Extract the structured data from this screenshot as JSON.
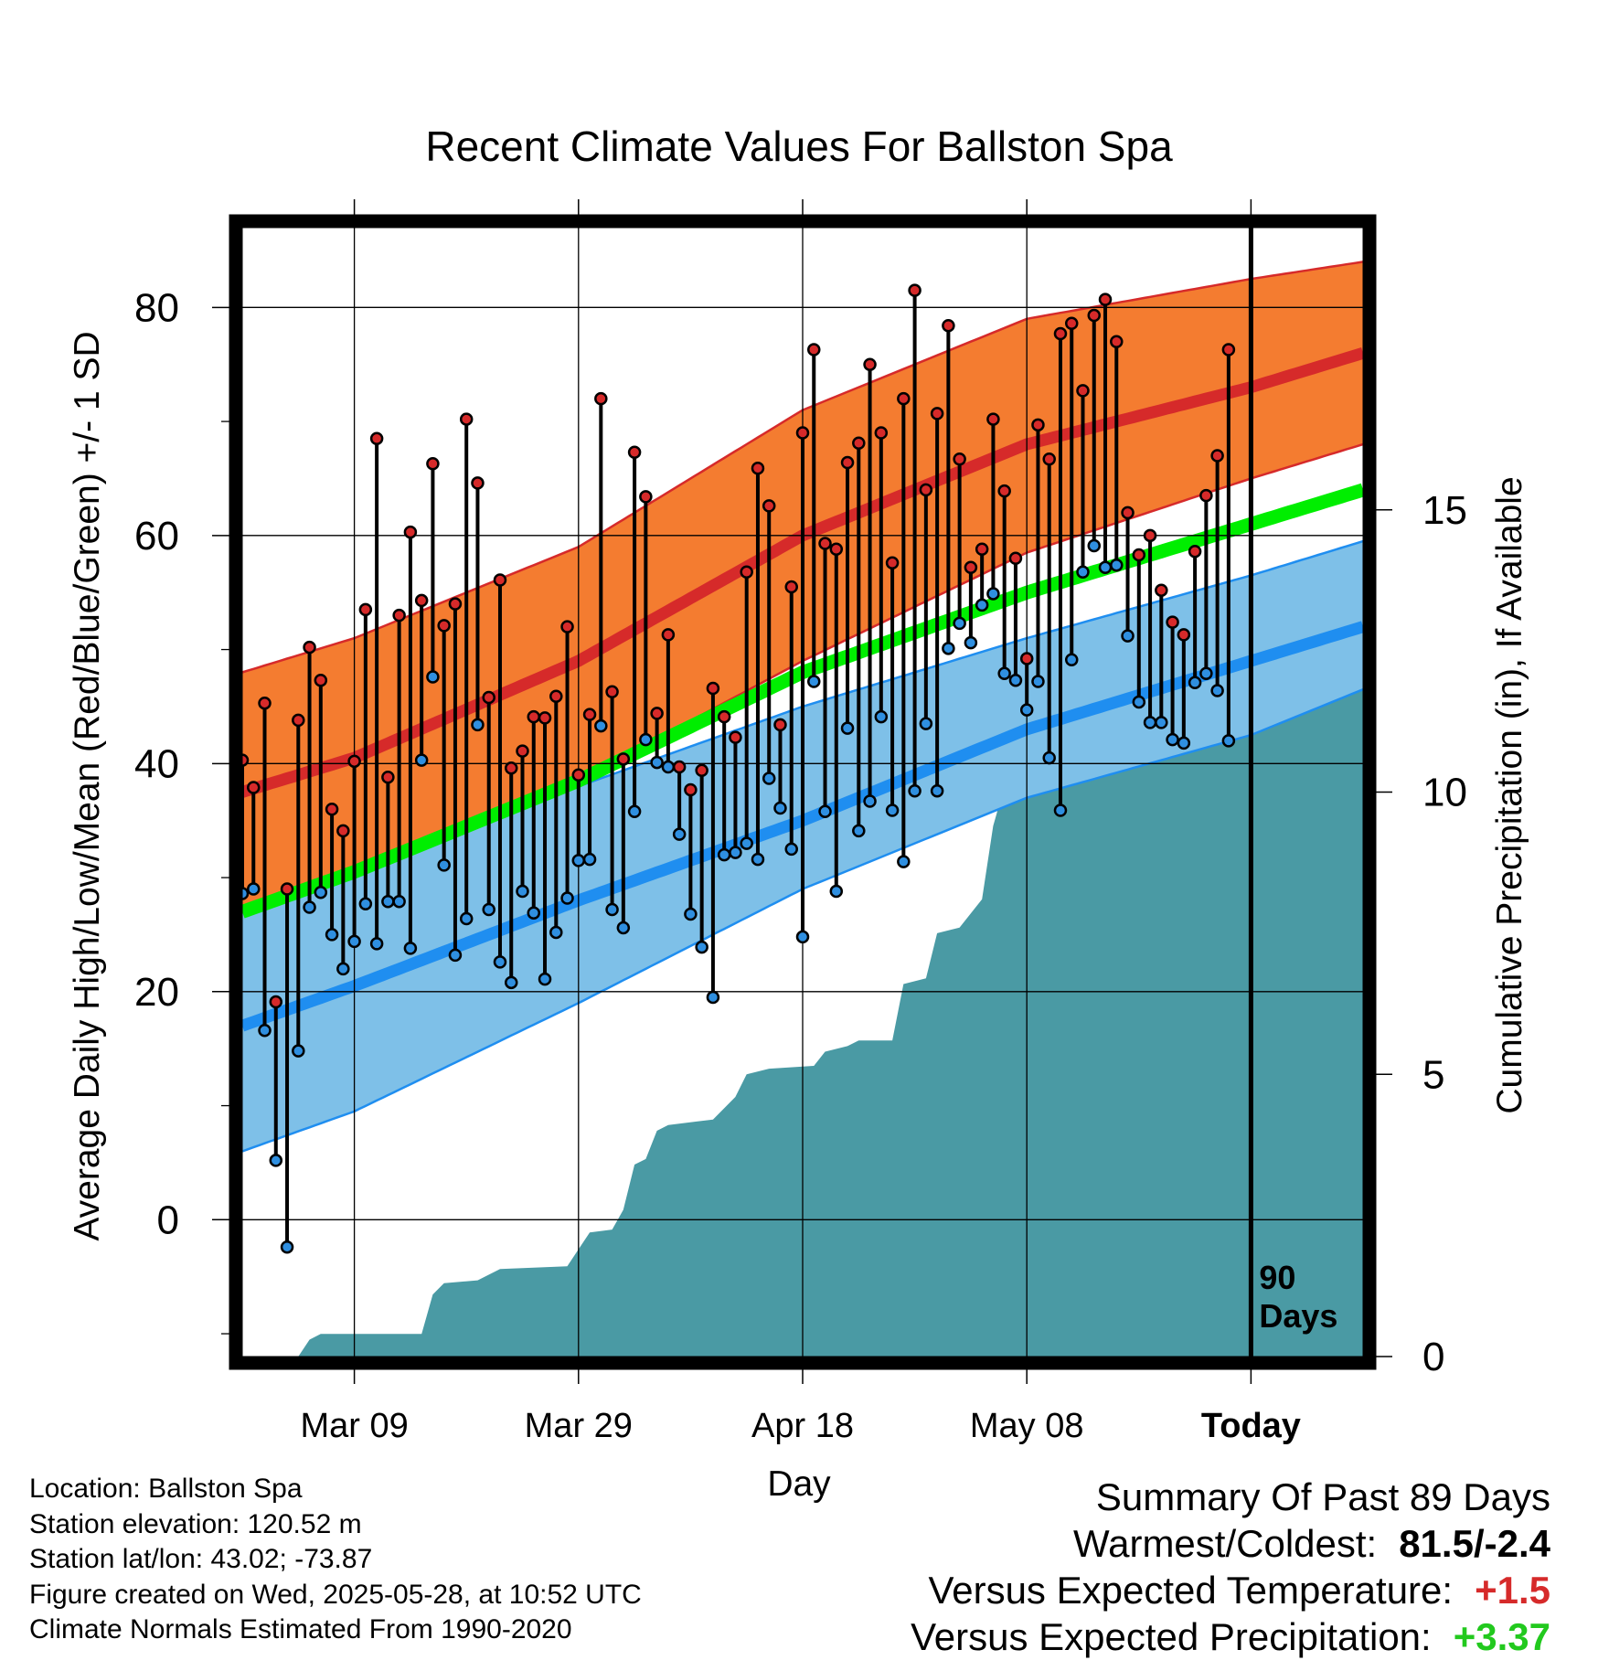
{
  "chart_data": {
    "type": "line",
    "title": "Recent Climate Values For Ballston Spa",
    "xlabel": "Day",
    "ylabel": "Average Daily High/Low/Mean (Red/Blue/Green) +/- 1 SD",
    "y2label": "Cumulative Precipitation (in), If Available",
    "xlim": [
      1,
      101
    ],
    "ylim": [
      -12,
      87
    ],
    "y2lim": [
      0,
      20
    ],
    "x_tick_labels": [
      "Mar 09",
      "Mar 29",
      "Apr 18",
      "May 08",
      "Today"
    ],
    "x_tick_days": [
      11,
      31,
      51,
      71,
      91
    ],
    "y_ticks": [
      0,
      20,
      40,
      60,
      80
    ],
    "y2_ticks": [
      0,
      5,
      10,
      15
    ],
    "grid": true,
    "today_marker": {
      "day": 91,
      "label_line1": "90",
      "label_line2": "Days"
    },
    "normal_high": [
      {
        "day": 1,
        "value": 37.5
      },
      {
        "day": 11,
        "value": 40.5
      },
      {
        "day": 31,
        "value": 49
      },
      {
        "day": 51,
        "value": 60
      },
      {
        "day": 71,
        "value": 68
      },
      {
        "day": 91,
        "value": 73
      },
      {
        "day": 101,
        "value": 76
      }
    ],
    "normal_high_sd_band": {
      "upper": [
        {
          "day": 1,
          "value": 48
        },
        {
          "day": 11,
          "value": 51
        },
        {
          "day": 31,
          "value": 59
        },
        {
          "day": 51,
          "value": 71
        },
        {
          "day": 71,
          "value": 79
        },
        {
          "day": 91,
          "value": 82.5
        },
        {
          "day": 101,
          "value": 84
        }
      ],
      "lower": [
        {
          "day": 1,
          "value": 27
        },
        {
          "day": 11,
          "value": 30
        },
        {
          "day": 31,
          "value": 38.5
        },
        {
          "day": 51,
          "value": 49
        },
        {
          "day": 71,
          "value": 58.5
        },
        {
          "day": 91,
          "value": 65
        },
        {
          "day": 101,
          "value": 68
        }
      ]
    },
    "normal_low": [
      {
        "day": 1,
        "value": 17
      },
      {
        "day": 11,
        "value": 20.5
      },
      {
        "day": 31,
        "value": 28
      },
      {
        "day": 51,
        "value": 35
      },
      {
        "day": 71,
        "value": 43
      },
      {
        "day": 91,
        "value": 49
      },
      {
        "day": 101,
        "value": 52
      }
    ],
    "normal_low_sd_band": {
      "upper": [
        {
          "day": 1,
          "value": 28.5
        },
        {
          "day": 11,
          "value": 31.5
        },
        {
          "day": 31,
          "value": 38
        },
        {
          "day": 51,
          "value": 45
        },
        {
          "day": 71,
          "value": 51
        },
        {
          "day": 91,
          "value": 56.5
        },
        {
          "day": 101,
          "value": 59.5
        }
      ],
      "lower": [
        {
          "day": 1,
          "value": 6
        },
        {
          "day": 11,
          "value": 9.5
        },
        {
          "day": 31,
          "value": 19
        },
        {
          "day": 51,
          "value": 29
        },
        {
          "day": 71,
          "value": 37
        },
        {
          "day": 91,
          "value": 42.5
        },
        {
          "day": 101,
          "value": 46.5
        }
      ]
    },
    "normal_mean": [
      {
        "day": 1,
        "value": 27
      },
      {
        "day": 11,
        "value": 30.5
      },
      {
        "day": 31,
        "value": 38.5
      },
      {
        "day": 51,
        "value": 48
      },
      {
        "day": 71,
        "value": 55
      },
      {
        "day": 91,
        "value": 61
      },
      {
        "day": 101,
        "value": 64
      }
    ],
    "daily_high": [
      40.3,
      37.9,
      45.3,
      19.1,
      29,
      43.8,
      50.2,
      47.3,
      36,
      34.1,
      40.2,
      53.5,
      68.5,
      38.8,
      53,
      60.3,
      54.3,
      66.3,
      52.1,
      54,
      70.2,
      64.6,
      45.8,
      56.1,
      39.6,
      41.1,
      44.1,
      44,
      45.9,
      52,
      39,
      44.3,
      72,
      46.3,
      40.4,
      67.3,
      63.4,
      44.4,
      51.3,
      39.7,
      37.7,
      39.4,
      46.6,
      44.1,
      42.3,
      56.8,
      65.9,
      62.6,
      43.4,
      55.5,
      69,
      76.3,
      59.3,
      58.8,
      66.4,
      68.1,
      75,
      69,
      57.6,
      72,
      81.5,
      64,
      70.7,
      78.4,
      66.7,
      57.2,
      58.8,
      70.2,
      63.9,
      58,
      49.2,
      69.7,
      66.7,
      77.7,
      78.6,
      72.7,
      79.3,
      80.7,
      77,
      62,
      58.3,
      60,
      55.2,
      52.4,
      51.3,
      58.6,
      63.5,
      67,
      76.3
    ],
    "daily_low": [
      28.6,
      29,
      16.6,
      5.2,
      -2.4,
      14.8,
      27.4,
      28.7,
      25,
      22,
      24.4,
      27.7,
      24.2,
      27.9,
      27.9,
      23.8,
      40.3,
      47.6,
      31.1,
      23.2,
      26.4,
      43.4,
      27.2,
      22.6,
      20.8,
      28.8,
      26.9,
      21.1,
      25.2,
      28.2,
      31.5,
      31.6,
      43.3,
      27.2,
      25.6,
      35.8,
      42.1,
      40.1,
      39.7,
      33.8,
      26.8,
      23.9,
      19.5,
      32,
      32.2,
      33,
      31.6,
      38.7,
      36.1,
      32.5,
      24.8,
      47.2,
      35.8,
      28.8,
      43.1,
      34.1,
      36.7,
      44.1,
      35.9,
      31.4,
      37.6,
      43.5,
      37.6,
      50.1,
      52.3,
      50.6,
      53.9,
      54.9,
      47.9,
      47.3,
      44.7,
      47.2,
      40.5,
      35.9,
      49.1,
      56.8,
      59.1,
      57.2,
      57.4,
      51.2,
      45.4,
      43.6,
      43.6,
      42.1,
      41.8,
      47.1,
      47.9,
      46.4,
      42
    ],
    "cumulative_precip": [
      {
        "day": 1,
        "value": 0
      },
      {
        "day": 6,
        "value": 0
      },
      {
        "day": 7,
        "value": 0.3
      },
      {
        "day": 8,
        "value": 0.4
      },
      {
        "day": 17,
        "value": 0.4
      },
      {
        "day": 18,
        "value": 1.1
      },
      {
        "day": 19,
        "value": 1.3
      },
      {
        "day": 22,
        "value": 1.35
      },
      {
        "day": 24,
        "value": 1.55
      },
      {
        "day": 30,
        "value": 1.6
      },
      {
        "day": 32,
        "value": 2.2
      },
      {
        "day": 34,
        "value": 2.25
      },
      {
        "day": 35,
        "value": 2.6
      },
      {
        "day": 36,
        "value": 3.4
      },
      {
        "day": 37,
        "value": 3.5
      },
      {
        "day": 38,
        "value": 4.0
      },
      {
        "day": 39,
        "value": 4.1
      },
      {
        "day": 43,
        "value": 4.2
      },
      {
        "day": 45,
        "value": 4.6
      },
      {
        "day": 46,
        "value": 5.0
      },
      {
        "day": 48,
        "value": 5.1
      },
      {
        "day": 52,
        "value": 5.15
      },
      {
        "day": 53,
        "value": 5.4
      },
      {
        "day": 55,
        "value": 5.5
      },
      {
        "day": 56,
        "value": 5.6
      },
      {
        "day": 59,
        "value": 5.6
      },
      {
        "day": 60,
        "value": 6.6
      },
      {
        "day": 62,
        "value": 6.7
      },
      {
        "day": 63,
        "value": 7.5
      },
      {
        "day": 65,
        "value": 7.6
      },
      {
        "day": 67,
        "value": 8.1
      },
      {
        "day": 68,
        "value": 9.4
      },
      {
        "day": 69,
        "value": 10.1
      },
      {
        "day": 70,
        "value": 10.3
      },
      {
        "day": 71,
        "value": 10.3
      },
      {
        "day": 72,
        "value": 12.2
      },
      {
        "day": 77,
        "value": 12.25
      },
      {
        "day": 85,
        "value": 12.3
      },
      {
        "day": 86,
        "value": 12.7
      },
      {
        "day": 88,
        "value": 12.8
      },
      {
        "day": 101,
        "value": 12.8
      }
    ],
    "colors": {
      "high_band": "#f47c30",
      "high_line": "#d62a2a",
      "low_band": "#7ec0e8",
      "low_line": "#1f8ef0",
      "mean_line": "#00ee00",
      "precip_fill": "#4a9aa4",
      "high_marker": "#d62a2a",
      "low_marker": "#2f8fe0"
    }
  },
  "footer_info": {
    "location": "Location: Ballston Spa",
    "elevation": "Station elevation: 120.52 m",
    "latlon": "Station lat/lon: 43.02; -73.87",
    "created": "Figure created on Wed, 2025-05-28, at 10:52 UTC",
    "normals": "Climate Normals Estimated From 1990-2020"
  },
  "summary": {
    "heading": "Summary Of Past 89 Days",
    "warmest_label": "Warmest/Coldest:",
    "warmest_value": "81.5/-2.4",
    "temp_label": "Versus Expected Temperature:",
    "temp_value": "+1.5",
    "precip_label": "Versus Expected Precipitation:",
    "precip_value": "+3.37"
  }
}
